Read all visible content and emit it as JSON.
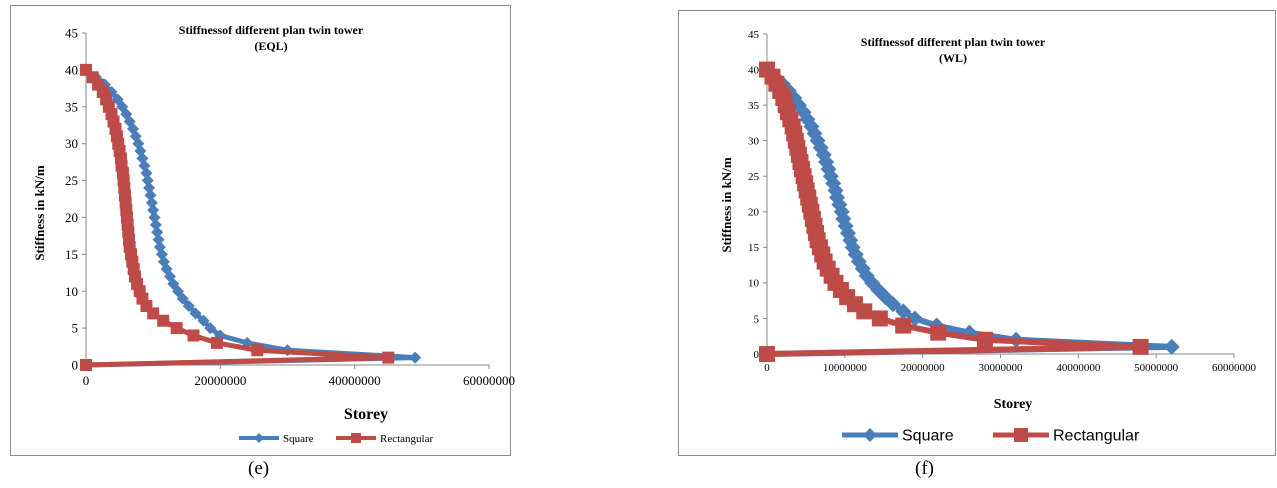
{
  "chart_data": [
    {
      "type": "line",
      "title": "Stiffnessof different plan twin tower",
      "subtitle": "(EQL)",
      "xlabel": "Storey",
      "ylabel": "Stiffness in kN/m",
      "xlim": [
        0,
        60000000
      ],
      "ylim": [
        0,
        45
      ],
      "xticks": [
        "0",
        "20000000",
        "40000000",
        "60000000"
      ],
      "yticks": [
        "0",
        "5",
        "10",
        "15",
        "20",
        "25",
        "30",
        "35",
        "40",
        "45"
      ],
      "legend_position": "bottom-right",
      "caption": "(e)",
      "series": [
        {
          "name": "Square",
          "color": "#4a7ebb",
          "marker": "diamond",
          "points": [
            [
              0,
              40
            ],
            [
              1500000,
              39
            ],
            [
              2800000,
              38
            ],
            [
              3800000,
              37
            ],
            [
              4700000,
              36
            ],
            [
              5400000,
              35
            ],
            [
              6000000,
              34
            ],
            [
              6500000,
              33
            ],
            [
              7000000,
              32
            ],
            [
              7400000,
              31
            ],
            [
              7800000,
              30
            ],
            [
              8100000,
              29
            ],
            [
              8400000,
              28
            ],
            [
              8700000,
              27
            ],
            [
              9000000,
              26
            ],
            [
              9200000,
              25
            ],
            [
              9400000,
              24
            ],
            [
              9600000,
              23
            ],
            [
              9800000,
              22
            ],
            [
              10000000,
              21
            ],
            [
              10200000,
              20
            ],
            [
              10400000,
              19
            ],
            [
              10600000,
              18
            ],
            [
              10800000,
              17
            ],
            [
              11000000,
              16
            ],
            [
              11300000,
              15
            ],
            [
              11600000,
              14
            ],
            [
              12000000,
              13
            ],
            [
              12500000,
              12
            ],
            [
              13000000,
              11
            ],
            [
              13700000,
              10
            ],
            [
              14400000,
              9
            ],
            [
              15300000,
              8
            ],
            [
              16300000,
              7
            ],
            [
              17500000,
              6
            ],
            [
              18500000,
              5
            ],
            [
              20000000,
              4
            ],
            [
              24000000,
              3
            ],
            [
              30000000,
              2
            ],
            [
              49000000,
              1
            ],
            [
              0,
              0
            ]
          ]
        },
        {
          "name": "Rectangular",
          "color": "#be4b48",
          "marker": "square",
          "points": [
            [
              0,
              40
            ],
            [
              1000000,
              39
            ],
            [
              1800000,
              38
            ],
            [
              2500000,
              37
            ],
            [
              3000000,
              36
            ],
            [
              3400000,
              35
            ],
            [
              3800000,
              34
            ],
            [
              4100000,
              33
            ],
            [
              4400000,
              32
            ],
            [
              4600000,
              31
            ],
            [
              4800000,
              30
            ],
            [
              5000000,
              29
            ],
            [
              5200000,
              28
            ],
            [
              5300000,
              27
            ],
            [
              5500000,
              26
            ],
            [
              5600000,
              25
            ],
            [
              5700000,
              24
            ],
            [
              5800000,
              23
            ],
            [
              5900000,
              22
            ],
            [
              6000000,
              21
            ],
            [
              6100000,
              20
            ],
            [
              6200000,
              19
            ],
            [
              6300000,
              18
            ],
            [
              6400000,
              17
            ],
            [
              6500000,
              16
            ],
            [
              6700000,
              15
            ],
            [
              6900000,
              14
            ],
            [
              7100000,
              13
            ],
            [
              7300000,
              12
            ],
            [
              7600000,
              11
            ],
            [
              8000000,
              10
            ],
            [
              8400000,
              9
            ],
            [
              9000000,
              8
            ],
            [
              10000000,
              7
            ],
            [
              11500000,
              6
            ],
            [
              13500000,
              5
            ],
            [
              16000000,
              4
            ],
            [
              19500000,
              3
            ],
            [
              25500000,
              2
            ],
            [
              45000000,
              1
            ],
            [
              0,
              0
            ]
          ]
        }
      ]
    },
    {
      "type": "line",
      "title": "Stiffnessof different plan twin tower",
      "subtitle": "(WL)",
      "xlabel": "Storey",
      "ylabel": "Stiffness in kN/m",
      "xlim": [
        0,
        60000000
      ],
      "ylim": [
        0,
        45
      ],
      "xticks": [
        "0",
        "10000000",
        "20000000",
        "30000000",
        "40000000",
        "50000000",
        "60000000"
      ],
      "yticks": [
        "0",
        "5",
        "10",
        "15",
        "20",
        "25",
        "30",
        "35",
        "40",
        "45"
      ],
      "legend_position": "bottom",
      "caption": "(f)",
      "series": [
        {
          "name": "Square",
          "color": "#4a7ebb",
          "marker": "diamond",
          "points": [
            [
              0,
              40
            ],
            [
              1000000,
              39
            ],
            [
              2000000,
              38
            ],
            [
              2800000,
              37
            ],
            [
              3500000,
              36
            ],
            [
              4100000,
              35
            ],
            [
              4700000,
              34
            ],
            [
              5200000,
              33
            ],
            [
              5700000,
              32
            ],
            [
              6100000,
              31
            ],
            [
              6500000,
              30
            ],
            [
              6900000,
              29
            ],
            [
              7300000,
              28
            ],
            [
              7600000,
              27
            ],
            [
              7900000,
              26
            ],
            [
              8200000,
              25
            ],
            [
              8500000,
              24
            ],
            [
              8800000,
              23
            ],
            [
              9000000,
              22
            ],
            [
              9300000,
              21
            ],
            [
              9600000,
              20
            ],
            [
              9800000,
              19
            ],
            [
              10100000,
              18
            ],
            [
              10400000,
              17
            ],
            [
              10700000,
              16
            ],
            [
              11000000,
              15
            ],
            [
              11400000,
              14
            ],
            [
              11800000,
              13
            ],
            [
              12300000,
              12
            ],
            [
              12800000,
              11
            ],
            [
              13500000,
              10
            ],
            [
              14300000,
              9
            ],
            [
              15200000,
              8
            ],
            [
              16200000,
              7
            ],
            [
              17500000,
              6
            ],
            [
              19000000,
              5
            ],
            [
              21800000,
              4
            ],
            [
              26000000,
              3
            ],
            [
              32000000,
              2
            ],
            [
              52000000,
              1
            ],
            [
              0,
              0
            ]
          ]
        },
        {
          "name": "Rectangular",
          "color": "#be4b48",
          "marker": "square",
          "points": [
            [
              0,
              40
            ],
            [
              700000,
              39
            ],
            [
              1200000,
              38
            ],
            [
              1700000,
              37
            ],
            [
              2100000,
              36
            ],
            [
              2400000,
              35
            ],
            [
              2700000,
              34
            ],
            [
              3000000,
              33
            ],
            [
              3300000,
              32
            ],
            [
              3500000,
              31
            ],
            [
              3700000,
              30
            ],
            [
              3900000,
              29
            ],
            [
              4100000,
              28
            ],
            [
              4300000,
              27
            ],
            [
              4500000,
              26
            ],
            [
              4700000,
              25
            ],
            [
              4900000,
              24
            ],
            [
              5100000,
              23
            ],
            [
              5300000,
              22
            ],
            [
              5500000,
              21
            ],
            [
              5700000,
              20
            ],
            [
              5900000,
              19
            ],
            [
              6100000,
              18
            ],
            [
              6300000,
              17
            ],
            [
              6500000,
              16
            ],
            [
              6800000,
              15
            ],
            [
              7100000,
              14
            ],
            [
              7400000,
              13
            ],
            [
              7800000,
              12
            ],
            [
              8300000,
              11
            ],
            [
              8800000,
              10
            ],
            [
              9500000,
              9
            ],
            [
              10300000,
              8
            ],
            [
              11300000,
              7
            ],
            [
              12500000,
              6
            ],
            [
              14500000,
              5
            ],
            [
              17500000,
              4
            ],
            [
              22000000,
              3
            ],
            [
              28000000,
              2
            ],
            [
              48000000,
              1
            ],
            [
              0,
              0
            ]
          ]
        }
      ]
    }
  ]
}
